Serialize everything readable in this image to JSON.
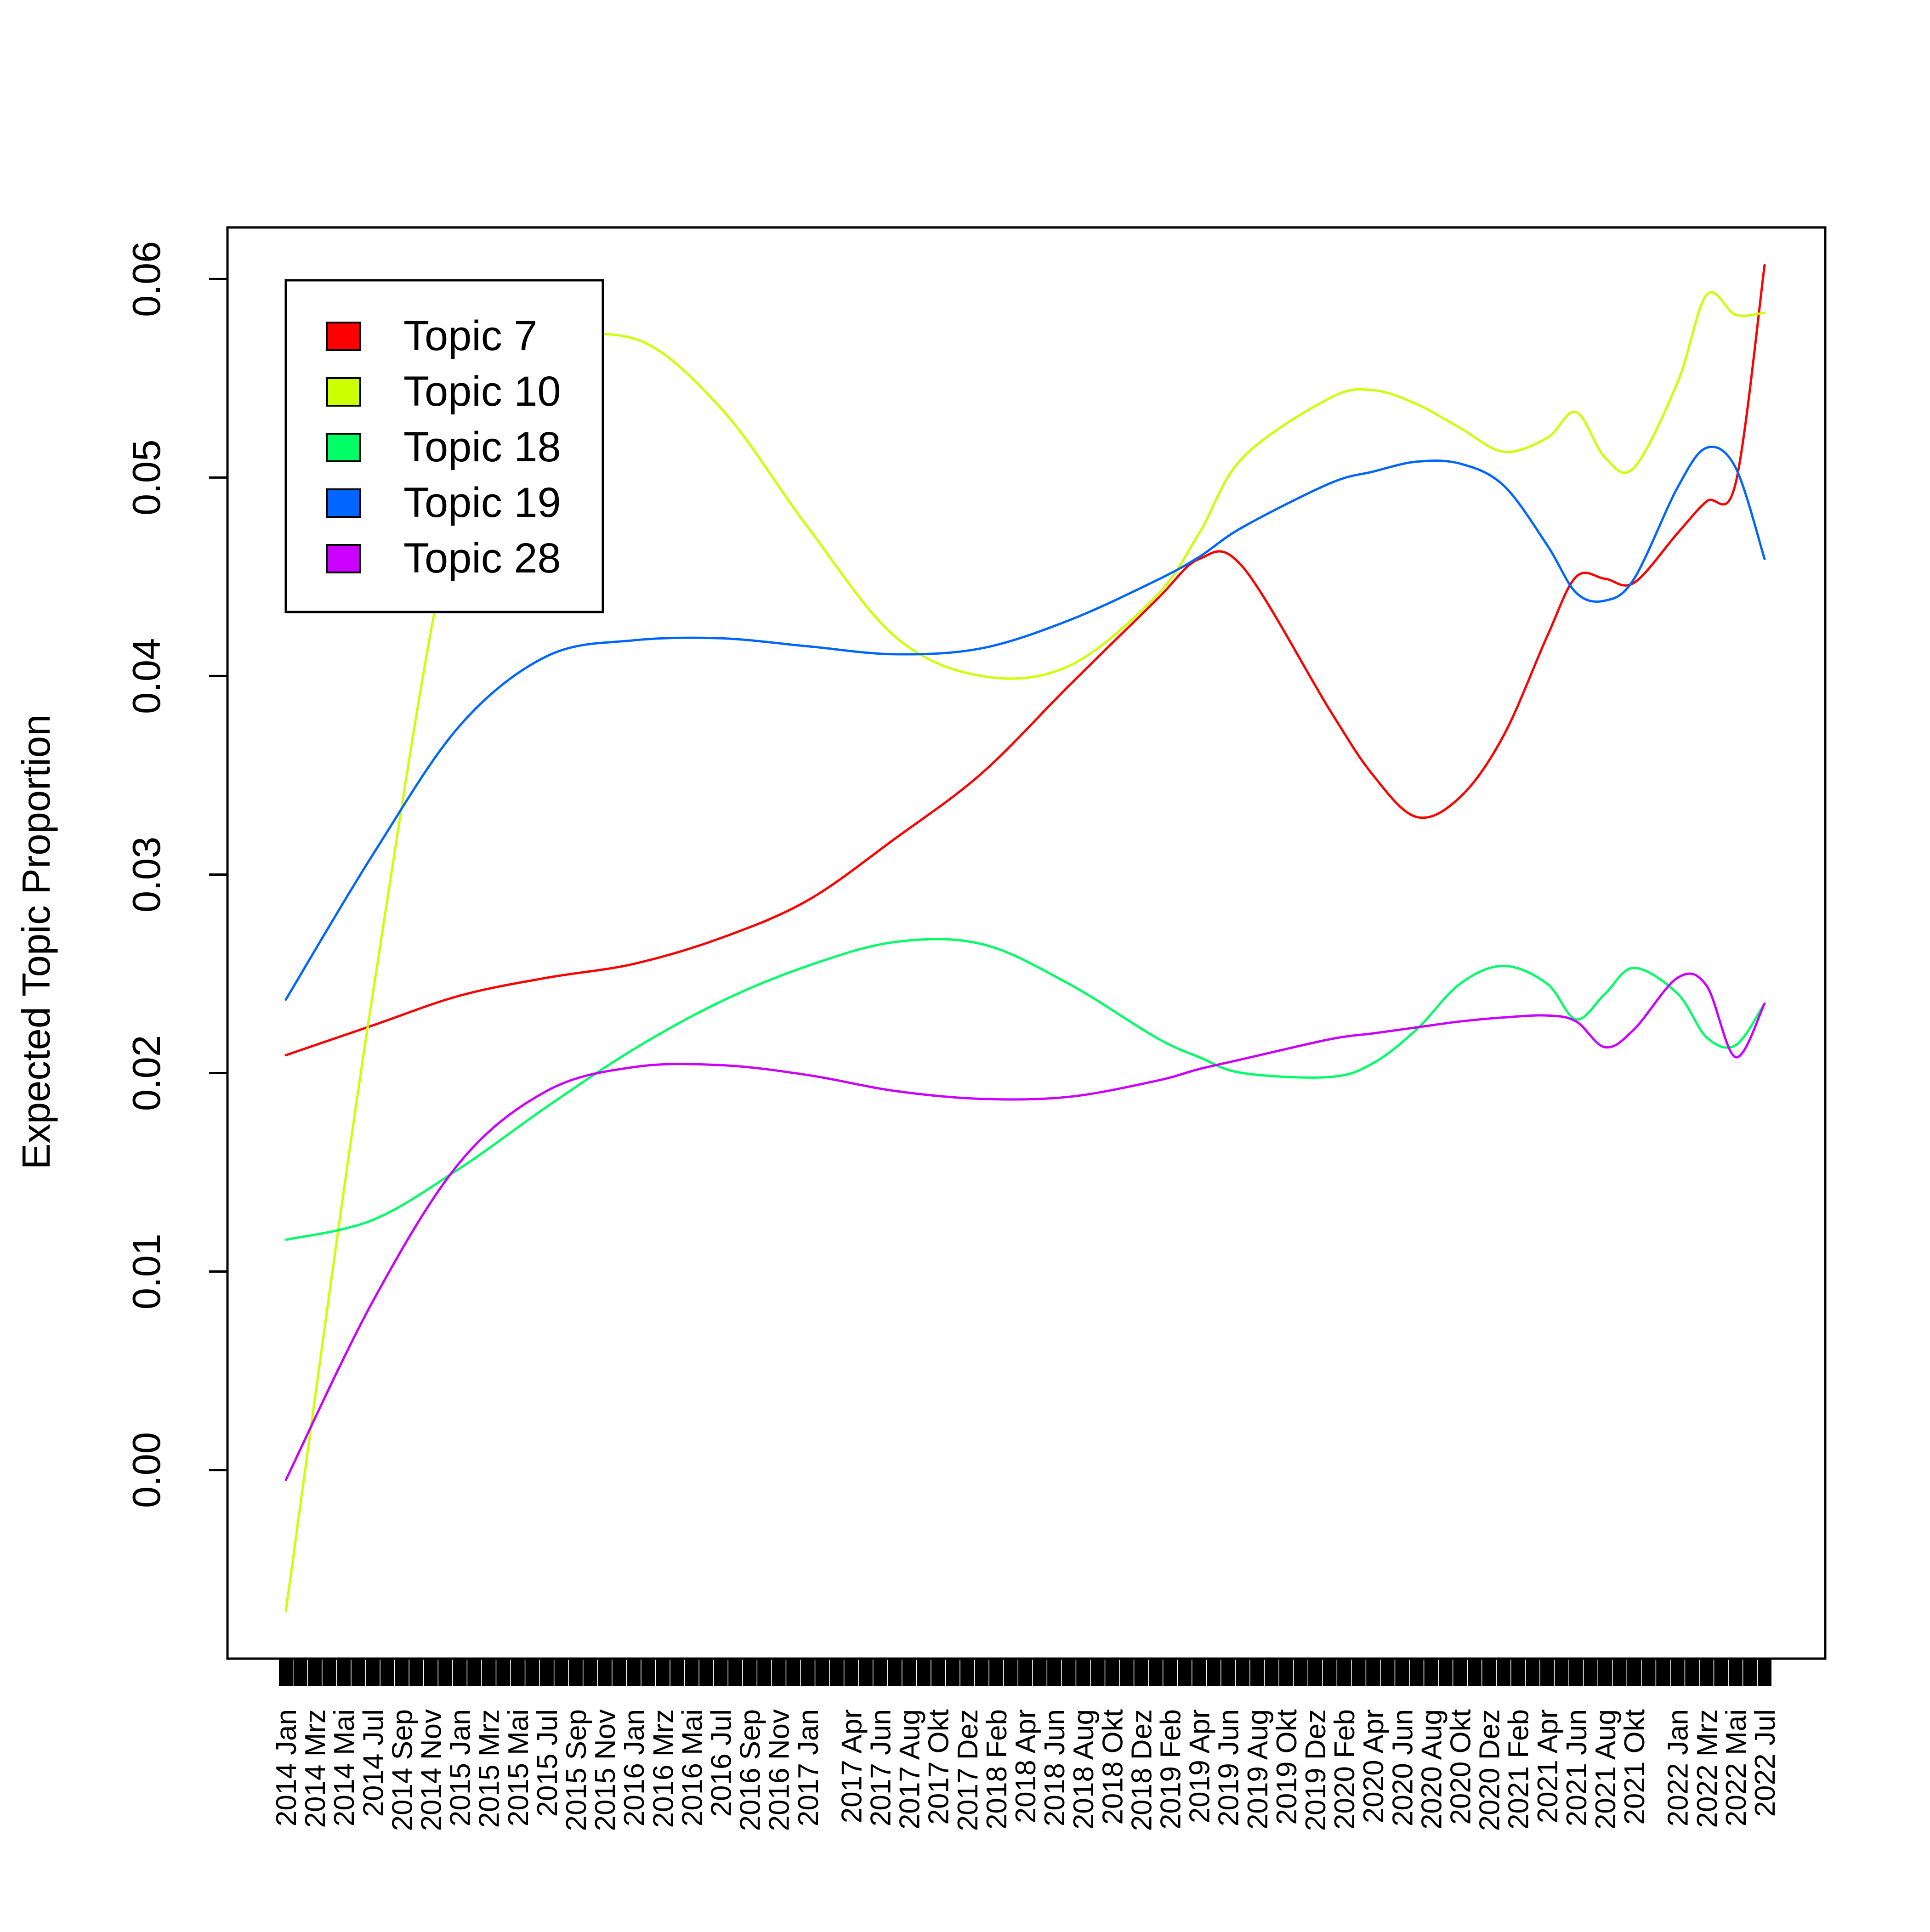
{
  "chart_data": {
    "type": "line",
    "ylabel": "Expected Topic Proportion",
    "ylim": [
      -0.0095,
      0.0626
    ],
    "yticks": [
      0.0,
      0.01,
      0.02,
      0.03,
      0.04,
      0.05,
      0.06
    ],
    "ytick_labels": [
      "0.00",
      "0.01",
      "0.02",
      "0.03",
      "0.04",
      "0.05",
      "0.06"
    ],
    "x_tick_labels": [
      "2014 Jan",
      "2014 Mrz",
      "2014 Mai",
      "2014 Jul",
      "2014 Sep",
      "2014 Nov",
      "2015 Jan",
      "2015 Mrz",
      "2015 Mai",
      "2015 Jul",
      "2015 Sep",
      "2015 Nov",
      "2016 Jan",
      "2016 Mrz",
      "2016 Mai",
      "2016 Jul",
      "2016 Sep",
      "2016 Nov",
      "2017 Jan",
      "2017 Apr",
      "2017 Jun",
      "2017 Aug",
      "2017 Okt",
      "2017 Dez",
      "2018 Feb",
      "2018 Apr",
      "2018 Jun",
      "2018 Aug",
      "2018 Okt",
      "2018 Dez",
      "2019 Feb",
      "2019 Apr",
      "2019 Jun",
      "2019 Aug",
      "2019 Okt",
      "2019 Dez",
      "2020 Feb",
      "2020 Apr",
      "2020 Jun",
      "2020 Aug",
      "2020 Okt",
      "2020 Dez",
      "2021 Feb",
      "2021 Apr",
      "2021 Jun",
      "2021 Aug",
      "2021 Okt",
      "2022 Jan",
      "2022 Mrz",
      "2022 Mai",
      "2022 Jul"
    ],
    "x": [
      "2014 Jan",
      "2014 Jul",
      "2015 Jan",
      "2015 Jul",
      "2016 Jan",
      "2016 Jul",
      "2017 Jan",
      "2017 Jul",
      "2018 Jan",
      "2018 Jul",
      "2019 Jan",
      "2019 Apr",
      "2019 Jul",
      "2020 Jan",
      "2020 Apr",
      "2020 Jul",
      "2020 Okt",
      "2021 Jan",
      "2021 Apr",
      "2021 Jun",
      "2021 Aug",
      "2021 Okt",
      "2022 Jan",
      "2022 Mrz",
      "2022 Mai",
      "2022 Jul"
    ],
    "series": [
      {
        "name": "Topic 7",
        "color": "#FF0000",
        "values": [
          0.0209,
          0.0224,
          0.0239,
          0.0248,
          0.0255,
          0.0268,
          0.0287,
          0.0318,
          0.0351,
          0.0395,
          0.0438,
          0.0459,
          0.0455,
          0.0383,
          0.035,
          0.0329,
          0.0339,
          0.037,
          0.042,
          0.045,
          0.0449,
          0.0447,
          0.0472,
          0.0488,
          0.0497,
          0.0607
        ]
      },
      {
        "name": "Topic 10",
        "color": "#CCFF00",
        "values": [
          -0.0071,
          0.024,
          0.049,
          0.056,
          0.057,
          0.0535,
          0.0475,
          0.042,
          0.04,
          0.0405,
          0.044,
          0.0472,
          0.051,
          0.054,
          0.0544,
          0.0537,
          0.0525,
          0.0513,
          0.052,
          0.0533,
          0.051,
          0.0505,
          0.0548,
          0.0592,
          0.0582,
          0.0583
        ]
      },
      {
        "name": "Topic 18",
        "color": "#00FF66",
        "values": [
          0.0116,
          0.0126,
          0.0152,
          0.0183,
          0.0212,
          0.0236,
          0.0254,
          0.0266,
          0.0265,
          0.0245,
          0.0218,
          0.0208,
          0.02,
          0.0198,
          0.0205,
          0.0222,
          0.0245,
          0.0254,
          0.0245,
          0.0227,
          0.024,
          0.0253,
          0.024,
          0.0218,
          0.0214,
          0.0235
        ]
      },
      {
        "name": "Topic 19",
        "color": "#0066FF",
        "values": [
          0.0237,
          0.031,
          0.0375,
          0.041,
          0.0418,
          0.0419,
          0.0415,
          0.0411,
          0.0414,
          0.0428,
          0.0448,
          0.046,
          0.0475,
          0.0497,
          0.0503,
          0.0508,
          0.0507,
          0.0496,
          0.0466,
          0.0442,
          0.0438,
          0.0449,
          0.0495,
          0.0515,
          0.0505,
          0.0459
        ]
      },
      {
        "name": "Topic 28",
        "color": "#CC00FF",
        "values": [
          -0.0005,
          0.0085,
          0.0155,
          0.0191,
          0.0203,
          0.0204,
          0.0199,
          0.0191,
          0.0187,
          0.0188,
          0.0196,
          0.0202,
          0.0207,
          0.0217,
          0.022,
          0.0223,
          0.0226,
          0.0228,
          0.0229,
          0.0226,
          0.0213,
          0.0222,
          0.0248,
          0.0244,
          0.0208,
          0.0235
        ]
      }
    ],
    "legend": {
      "placement": "top-left",
      "entries": [
        "Topic 7",
        "Topic 10",
        "Topic 18",
        "Topic 19",
        "Topic 28"
      ]
    },
    "grid": false
  }
}
